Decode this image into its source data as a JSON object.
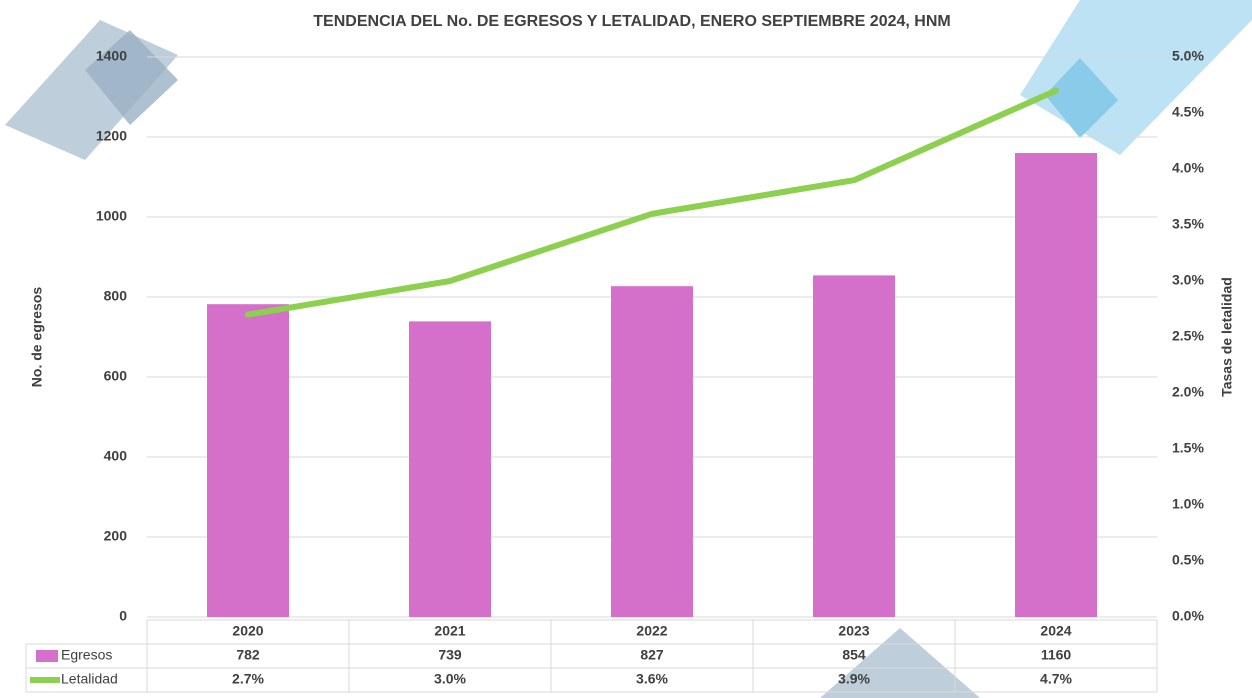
{
  "chart_data": {
    "type": "bar",
    "title": "TENDENCIA DEL No. DE EGRESOS Y LETALIDAD, ENERO SEPTIEMBRE 2024, HNM",
    "ylabel": "No. de egresos",
    "y2label": "Tasas de letalidad",
    "categories": [
      "2020",
      "2021",
      "2022",
      "2023",
      "2024"
    ],
    "series": [
      {
        "name": "Egresos",
        "type": "bar",
        "color": "#d46fca",
        "values": [
          782,
          739,
          827,
          854,
          1160
        ]
      },
      {
        "name": "Letalidad",
        "type": "line",
        "axis": "y2",
        "color": "#8dcf4f",
        "values": [
          2.7,
          3.0,
          3.6,
          3.9,
          4.7
        ],
        "value_labels": [
          "2.7%",
          "3.0%",
          "3.6%",
          "3.9%",
          "4.7%"
        ]
      }
    ],
    "ylim": [
      0,
      1400
    ],
    "yticks": [
      0,
      200,
      400,
      600,
      800,
      1000,
      1200,
      1400
    ],
    "y2lim": [
      0,
      5
    ],
    "y2ticks": [
      {
        "value": 0,
        "label": "0.0%"
      },
      {
        "value": 0.5,
        "label": "0.5%"
      },
      {
        "value": 1,
        "label": "1.0%"
      },
      {
        "value": 1.5,
        "label": "1.5%"
      },
      {
        "value": 2,
        "label": "2.0%"
      },
      {
        "value": 2.5,
        "label": "2.5%"
      },
      {
        "value": 3,
        "label": "3.0%"
      },
      {
        "value": 3.5,
        "label": "3.5%"
      },
      {
        "value": 4,
        "label": "4.0%"
      },
      {
        "value": 4.5,
        "label": "4.5%"
      },
      {
        "value": 5,
        "label": "5.0%"
      }
    ],
    "grid": true
  }
}
